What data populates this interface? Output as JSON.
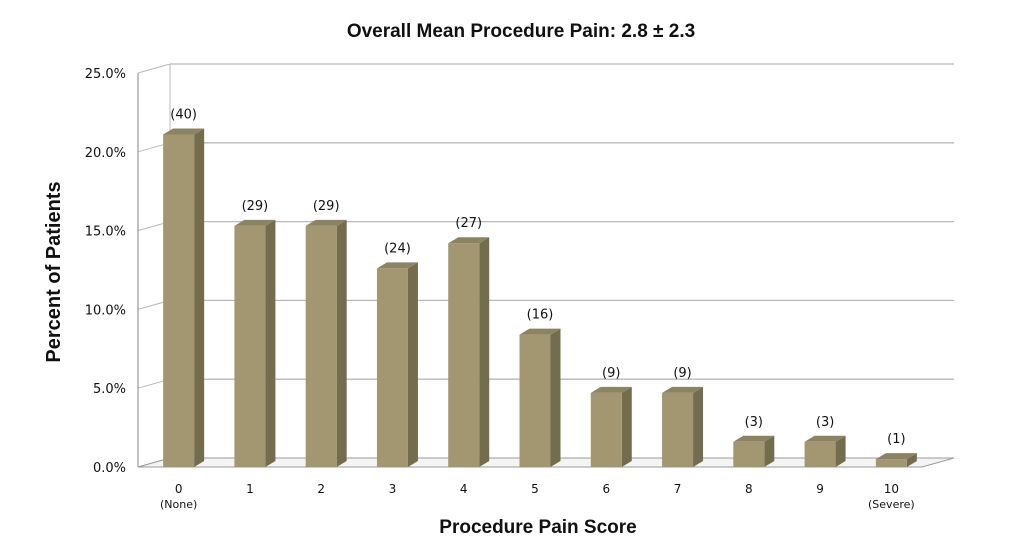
{
  "chart_data": {
    "type": "bar",
    "title": "Overall Mean Procedure Pain: 2.8 ± 2.3",
    "xlabel": "Procedure Pain Score",
    "ylabel": "Percent of Patients",
    "categories": [
      "0",
      "1",
      "2",
      "3",
      "4",
      "5",
      "6",
      "7",
      "8",
      "9",
      "10"
    ],
    "category_sublabels": [
      "(None)",
      "",
      "",
      "",
      "",
      "",
      "",
      "",
      "",
      "",
      "(Severe)"
    ],
    "values": [
      21.1,
      15.3,
      15.3,
      12.6,
      14.2,
      8.4,
      4.7,
      4.7,
      1.6,
      1.6,
      0.5
    ],
    "data_labels": [
      "(40)",
      "(29)",
      "(29)",
      "(24)",
      "(27)",
      "(16)",
      "(9)",
      "(9)",
      "(3)",
      "(3)",
      "(1)"
    ],
    "yticks": [
      "0.0%",
      "5.0%",
      "10.0%",
      "15.0%",
      "20.0%",
      "25.0%"
    ],
    "ylim": [
      0,
      25
    ],
    "grid": true,
    "legend": "none",
    "colors": {
      "bar_front": "#a29770",
      "bar_side": "#746d4d",
      "bar_top": "#8c8460",
      "grid": "#b8b8b8",
      "axis": "#9a9a9a"
    }
  }
}
